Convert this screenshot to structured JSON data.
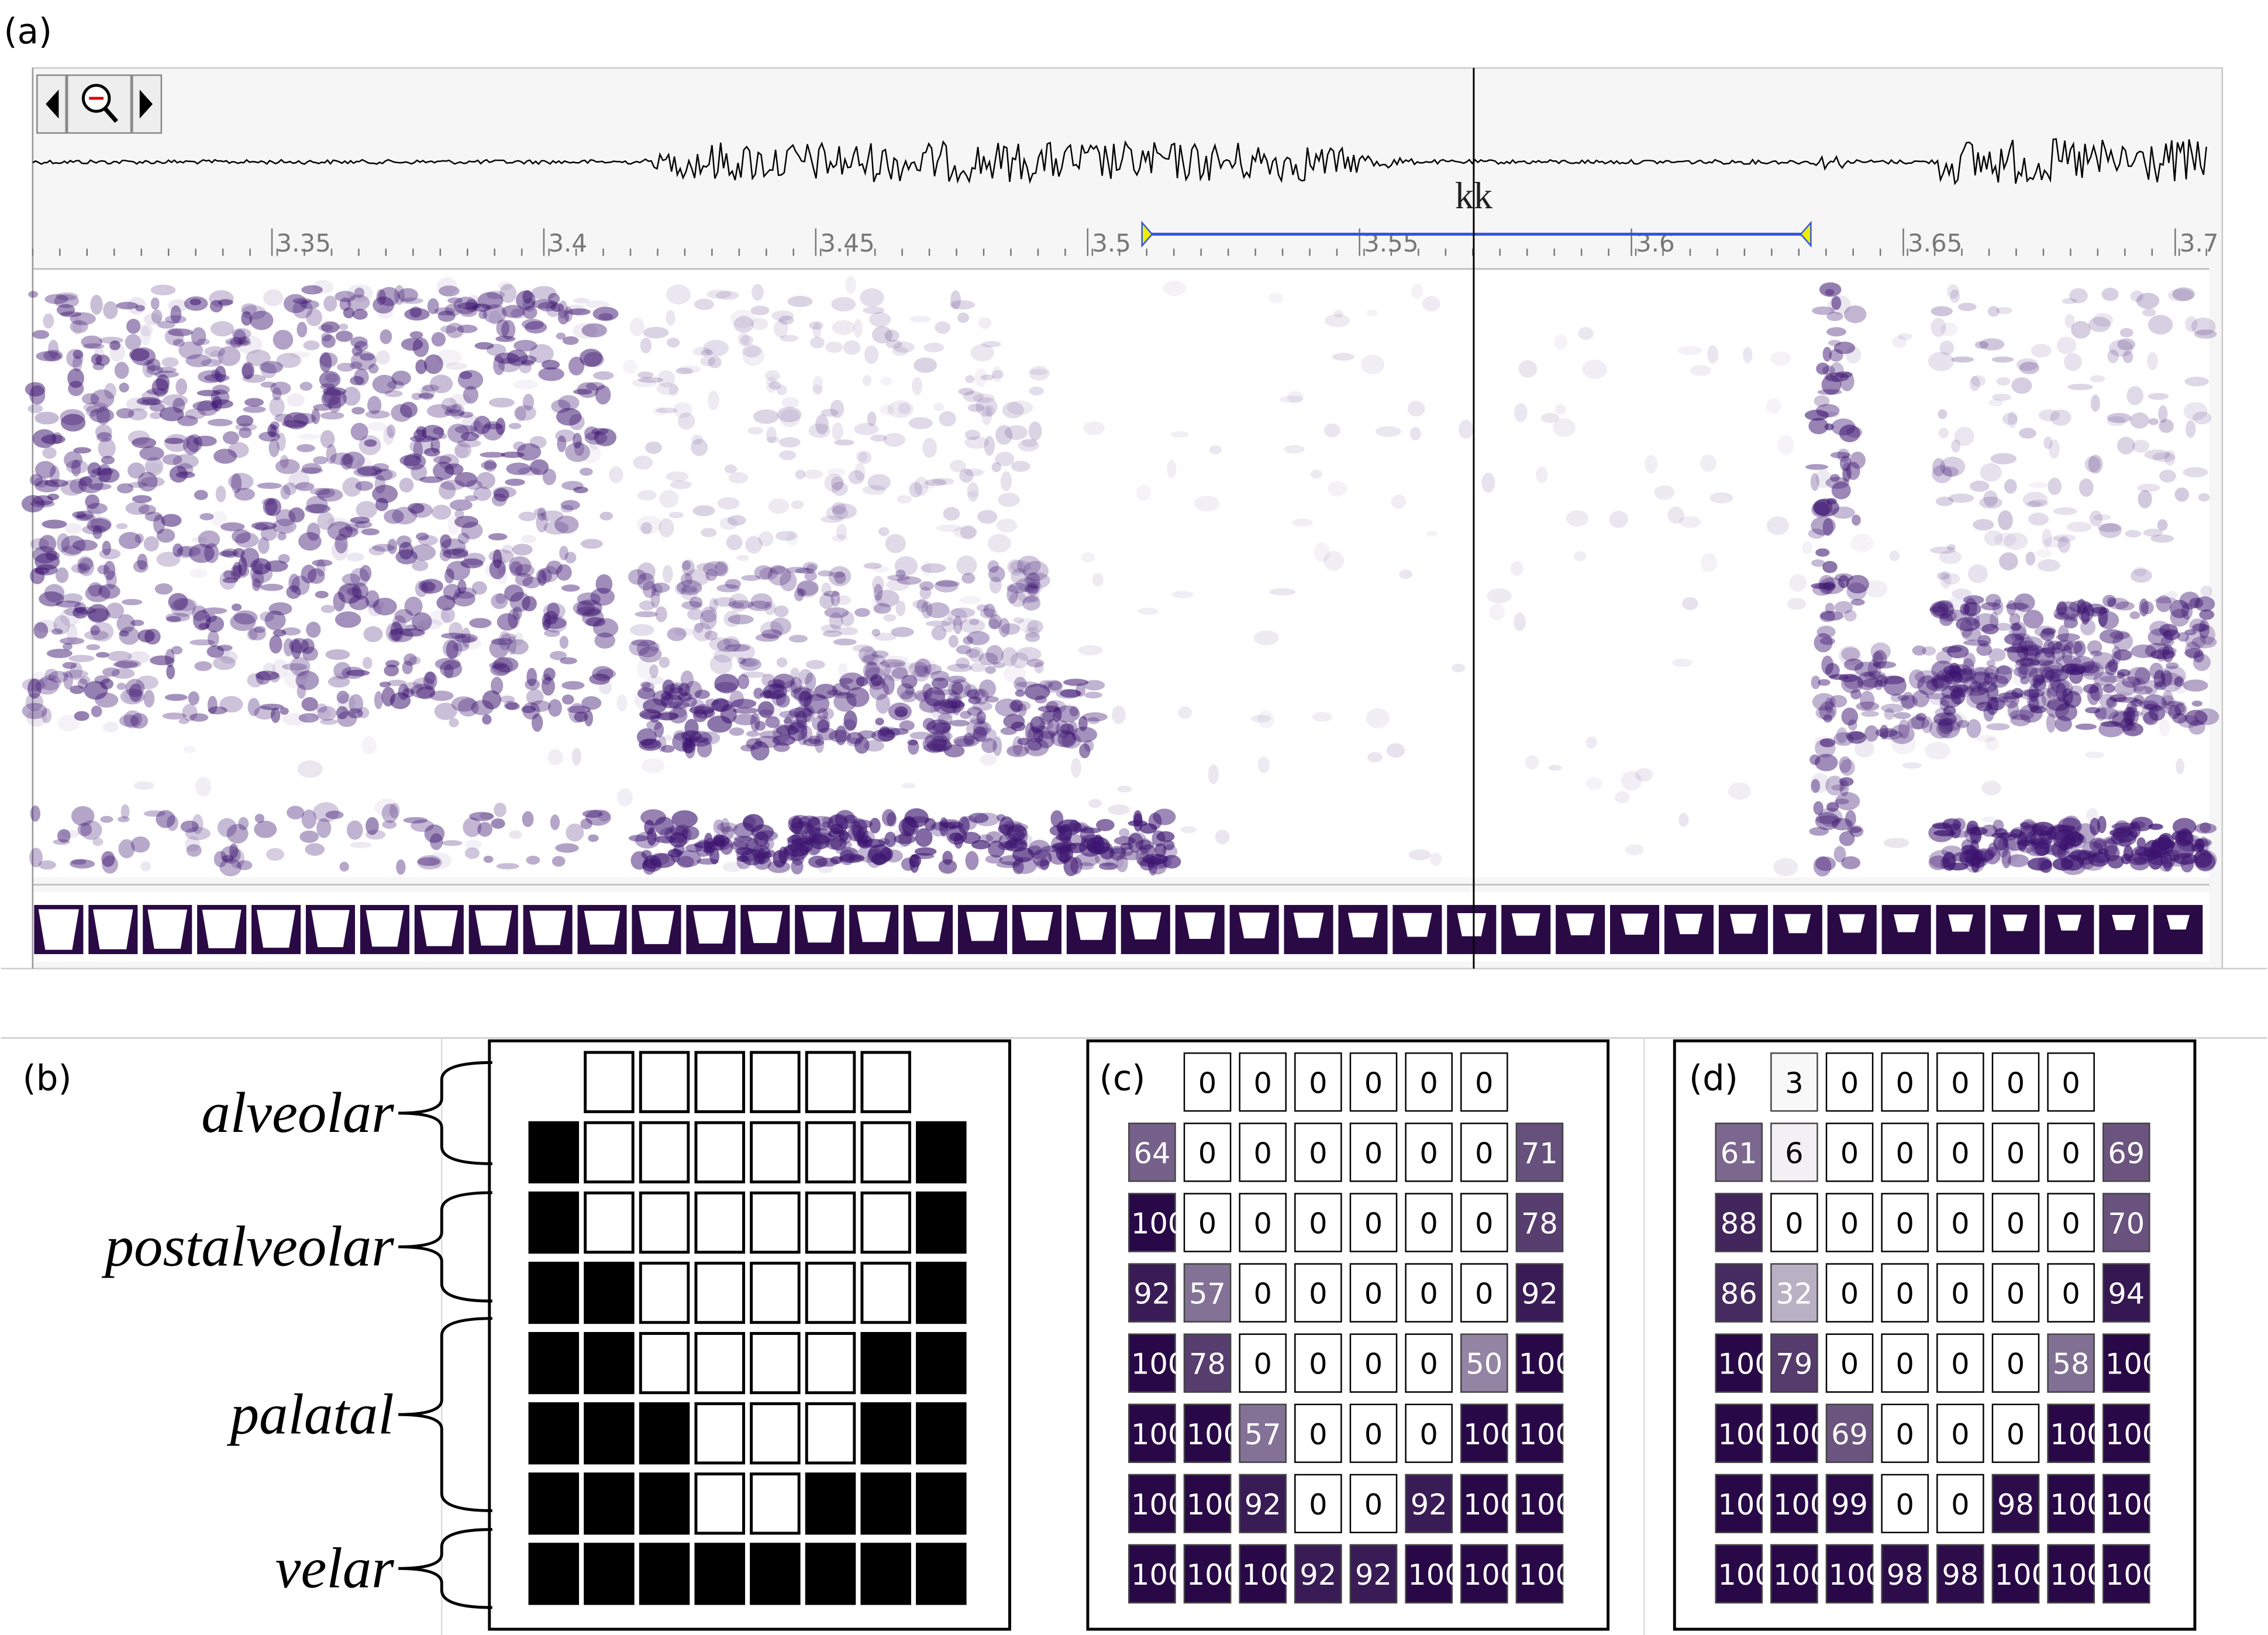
{
  "panel_labels": [
    "(a)",
    "(b)",
    "(c)",
    "(d)"
  ],
  "waveform_panel": {
    "cursor_label": "kk",
    "time_ticks": [
      3.35,
      3.4,
      3.45,
      3.5,
      3.55,
      3.6,
      3.65,
      3.7
    ],
    "time_range": [
      3.306,
      3.706
    ],
    "selection": [
      3.51,
      3.633
    ],
    "cursor": 3.571
  },
  "region_labels": [
    "alveolar",
    "postalveolar",
    "palatal",
    "velar"
  ],
  "contact_pattern": {
    "rows": [
      [
        0,
        0,
        0,
        0,
        0,
        0
      ],
      [
        1,
        0,
        0,
        0,
        0,
        0,
        0,
        1
      ],
      [
        1,
        0,
        0,
        0,
        0,
        0,
        0,
        1
      ],
      [
        1,
        1,
        0,
        0,
        0,
        0,
        0,
        1
      ],
      [
        1,
        1,
        0,
        0,
        0,
        0,
        1,
        1
      ],
      [
        1,
        1,
        1,
        0,
        0,
        0,
        1,
        1
      ],
      [
        1,
        1,
        1,
        0,
        0,
        1,
        1,
        1
      ],
      [
        1,
        1,
        1,
        1,
        1,
        1,
        1,
        1
      ]
    ]
  },
  "contact_c": {
    "rows": [
      [
        0,
        0,
        0,
        0,
        0,
        0
      ],
      [
        64,
        0,
        0,
        0,
        0,
        0,
        0,
        71
      ],
      [
        100,
        0,
        0,
        0,
        0,
        0,
        0,
        78
      ],
      [
        92,
        57,
        0,
        0,
        0,
        0,
        0,
        92
      ],
      [
        100,
        78,
        0,
        0,
        0,
        0,
        50,
        100
      ],
      [
        100,
        100,
        57,
        0,
        0,
        0,
        100,
        100
      ],
      [
        100,
        100,
        92,
        0,
        0,
        92,
        100,
        100
      ],
      [
        100,
        100,
        100,
        92,
        92,
        100,
        100,
        100
      ]
    ]
  },
  "contact_d": {
    "rows": [
      [
        3,
        0,
        0,
        0,
        0,
        0
      ],
      [
        61,
        6,
        0,
        0,
        0,
        0,
        0,
        69
      ],
      [
        88,
        0,
        0,
        0,
        0,
        0,
        0,
        70
      ],
      [
        86,
        32,
        0,
        0,
        0,
        0,
        0,
        94
      ],
      [
        100,
        79,
        0,
        0,
        0,
        0,
        58,
        100
      ],
      [
        100,
        100,
        69,
        0,
        0,
        0,
        100,
        100
      ],
      [
        100,
        100,
        99,
        0,
        0,
        98,
        100,
        100
      ],
      [
        100,
        100,
        100,
        98,
        98,
        100,
        100,
        100
      ]
    ]
  }
}
